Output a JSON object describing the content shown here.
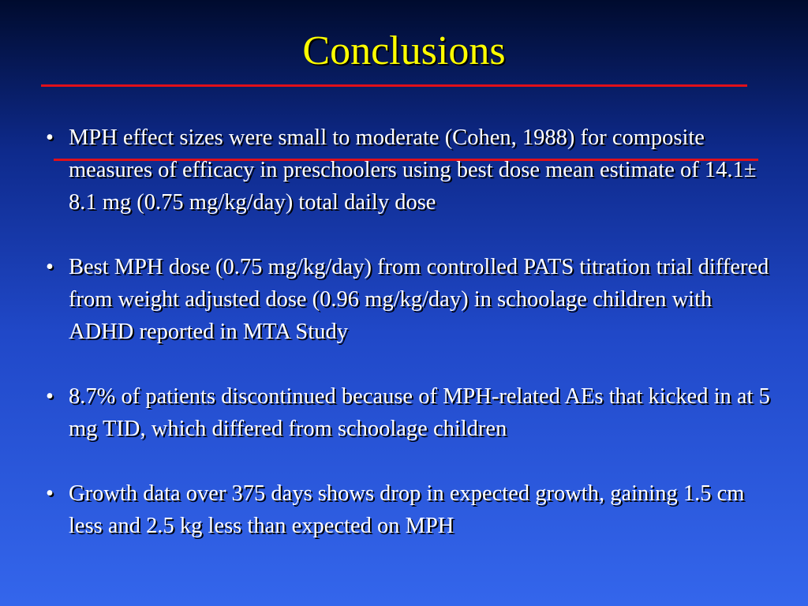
{
  "slide": {
    "title": "Conclusions",
    "bullet_glyph": "•",
    "bullets": [
      "MPH effect sizes were small to moderate (Cohen, 1988) for composite measures of efficacy in preschoolers using best dose mean estimate of 14.1± 8.1 mg (0.75 mg/kg/day) total daily dose",
      "Best MPH dose (0.75 mg/kg/day) from controlled PATS titration trial differed from weight adjusted dose (0.96 mg/kg/day) in schoolage children with ADHD reported in MTA Study",
      "8.7% of patients discontinued because of MPH-related AEs that kicked in at 5 mg TID, which differed from schoolage children",
      "Growth data over 375 days shows drop in expected growth, gaining 1.5 cm less and 2.5 kg less than expected on MPH"
    ]
  },
  "colors": {
    "title": "#ffff00",
    "rule": "#e0101a",
    "text": "#ffffff",
    "background_top": "#000b2e",
    "background_bottom": "#3466ec"
  }
}
